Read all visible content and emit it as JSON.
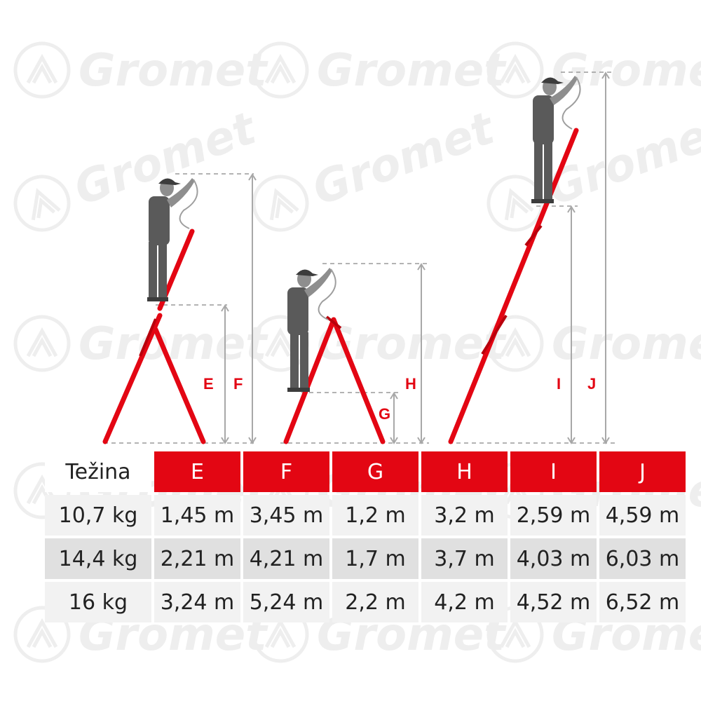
{
  "brand": {
    "watermark": "Gromet",
    "accent": "#e30613"
  },
  "diagram": {
    "dimension_letters": [
      "E",
      "F",
      "G",
      "H",
      "I",
      "J"
    ]
  },
  "table": {
    "corner_label": "Težina",
    "columns": [
      "E",
      "F",
      "G",
      "H",
      "I",
      "J"
    ],
    "rows": [
      {
        "label": "10,7 kg",
        "values": [
          "1,45 m",
          "3,45 m",
          "1,2 m",
          "3,2 m",
          "2,59 m",
          "4,59 m"
        ]
      },
      {
        "label": "14,4 kg",
        "values": [
          "2,21 m",
          "4,21 m",
          "1,7 m",
          "3,7 m",
          "4,03 m",
          "6,03 m"
        ]
      },
      {
        "label": "16 kg",
        "values": [
          "3,24 m",
          "5,24 m",
          "2,2 m",
          "4,2 m",
          "4,52 m",
          "6,52 m"
        ]
      }
    ]
  }
}
